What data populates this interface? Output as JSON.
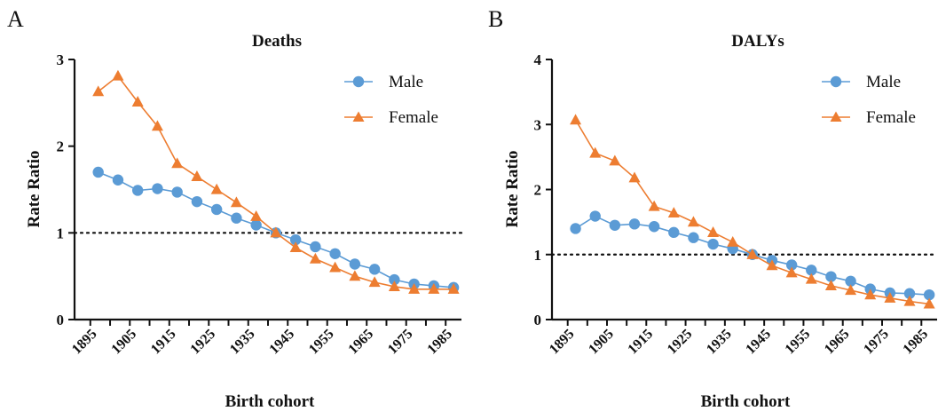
{
  "charts": [
    {
      "panel_label": "A",
      "chart_data": {
        "type": "line",
        "title": "Deaths",
        "xlabel": "Birth cohort",
        "ylabel": "Rate Ratio",
        "xlim": [
          1891,
          1989
        ],
        "ylim": [
          0,
          3
        ],
        "yticks": [
          0,
          1,
          2,
          3
        ],
        "xticks": [
          1895,
          1905,
          1915,
          1925,
          1935,
          1945,
          1955,
          1965,
          1975,
          1985
        ],
        "reference_line": 1,
        "grid": false,
        "legend_position": "top-right",
        "x": [
          1897,
          1902,
          1907,
          1912,
          1917,
          1922,
          1927,
          1932,
          1937,
          1942,
          1947,
          1952,
          1957,
          1962,
          1967,
          1972,
          1977,
          1982,
          1987
        ],
        "series": [
          {
            "name": "Male",
            "color": "#5b9bd5",
            "marker": "circle",
            "values": [
              1.7,
              1.61,
              1.49,
              1.51,
              1.47,
              1.36,
              1.27,
              1.17,
              1.09,
              1.0,
              0.92,
              0.84,
              0.76,
              0.64,
              0.58,
              0.46,
              0.41,
              0.39,
              0.37
            ]
          },
          {
            "name": "Female",
            "color": "#ed7d31",
            "marker": "triangle",
            "values": [
              2.63,
              2.81,
              2.51,
              2.23,
              1.8,
              1.65,
              1.5,
              1.35,
              1.19,
              1.0,
              0.83,
              0.7,
              0.6,
              0.5,
              0.43,
              0.38,
              0.35,
              0.35,
              0.35
            ]
          }
        ]
      }
    },
    {
      "panel_label": "B",
      "chart_data": {
        "type": "line",
        "title": "DALYs",
        "xlabel": "Birth cohort",
        "ylabel": "Rate Ratio",
        "xlim": [
          1891,
          1989
        ],
        "ylim": [
          0,
          4
        ],
        "yticks": [
          0,
          1,
          2,
          3,
          4
        ],
        "xticks": [
          1895,
          1905,
          1915,
          1925,
          1935,
          1945,
          1955,
          1965,
          1975,
          1985
        ],
        "reference_line": 1,
        "grid": false,
        "legend_position": "top-right",
        "x": [
          1897,
          1902,
          1907,
          1912,
          1917,
          1922,
          1927,
          1932,
          1937,
          1942,
          1947,
          1952,
          1957,
          1962,
          1967,
          1972,
          1977,
          1982,
          1987
        ],
        "series": [
          {
            "name": "Male",
            "color": "#5b9bd5",
            "marker": "circle",
            "values": [
              1.4,
              1.59,
              1.45,
              1.47,
              1.43,
              1.34,
              1.26,
              1.16,
              1.09,
              1.0,
              0.91,
              0.84,
              0.76,
              0.66,
              0.59,
              0.47,
              0.41,
              0.4,
              0.38
            ]
          },
          {
            "name": "Female",
            "color": "#ed7d31",
            "marker": "triangle",
            "values": [
              3.07,
              2.56,
              2.44,
              2.18,
              1.74,
              1.64,
              1.5,
              1.34,
              1.19,
              1.0,
              0.83,
              0.72,
              0.62,
              0.52,
              0.45,
              0.38,
              0.33,
              0.28,
              0.24
            ]
          }
        ]
      }
    }
  ]
}
